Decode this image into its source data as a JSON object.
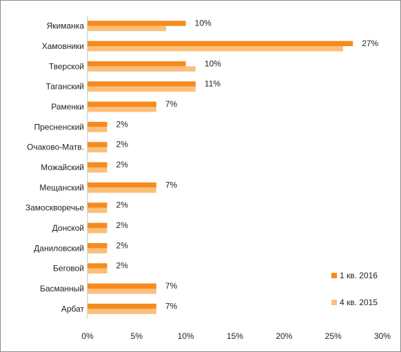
{
  "chart_data": {
    "type": "bar",
    "orientation": "horizontal",
    "categories": [
      "Якиманка",
      "Хамовники",
      "Тверской",
      "Таганский",
      "Раменки",
      "Пресненский",
      "Очаково-Матв.",
      "Можайский",
      "Мещанский",
      "Замоскворечье",
      "Донской",
      "Даниловский",
      "Беговой",
      "Басманный",
      "Арбат"
    ],
    "series": [
      {
        "name": "1 кв. 2016",
        "color": "#f58b1f",
        "values": [
          10,
          27,
          10,
          11,
          7,
          2,
          2,
          2,
          7,
          2,
          2,
          2,
          2,
          7,
          7
        ]
      },
      {
        "name": "4 кв. 2015",
        "color": "#fbbf7a",
        "values": [
          8,
          26,
          11,
          11,
          7,
          2,
          2,
          2,
          7,
          2,
          2,
          2,
          2,
          7,
          7
        ]
      }
    ],
    "data_labels": [
      "10%",
      "27%",
      "10%",
      "11%",
      "7%",
      "2%",
      "2%",
      "2%",
      "7%",
      "2%",
      "2%",
      "2%",
      "2%",
      "7%",
      "7%"
    ],
    "xlim": [
      0,
      30
    ],
    "x_ticks": [
      "0%",
      "5%",
      "10%",
      "15%",
      "20%",
      "25%",
      "30%"
    ],
    "grid": false,
    "legend_position": "bottom-right",
    "title": "",
    "xlabel": "",
    "ylabel": ""
  }
}
